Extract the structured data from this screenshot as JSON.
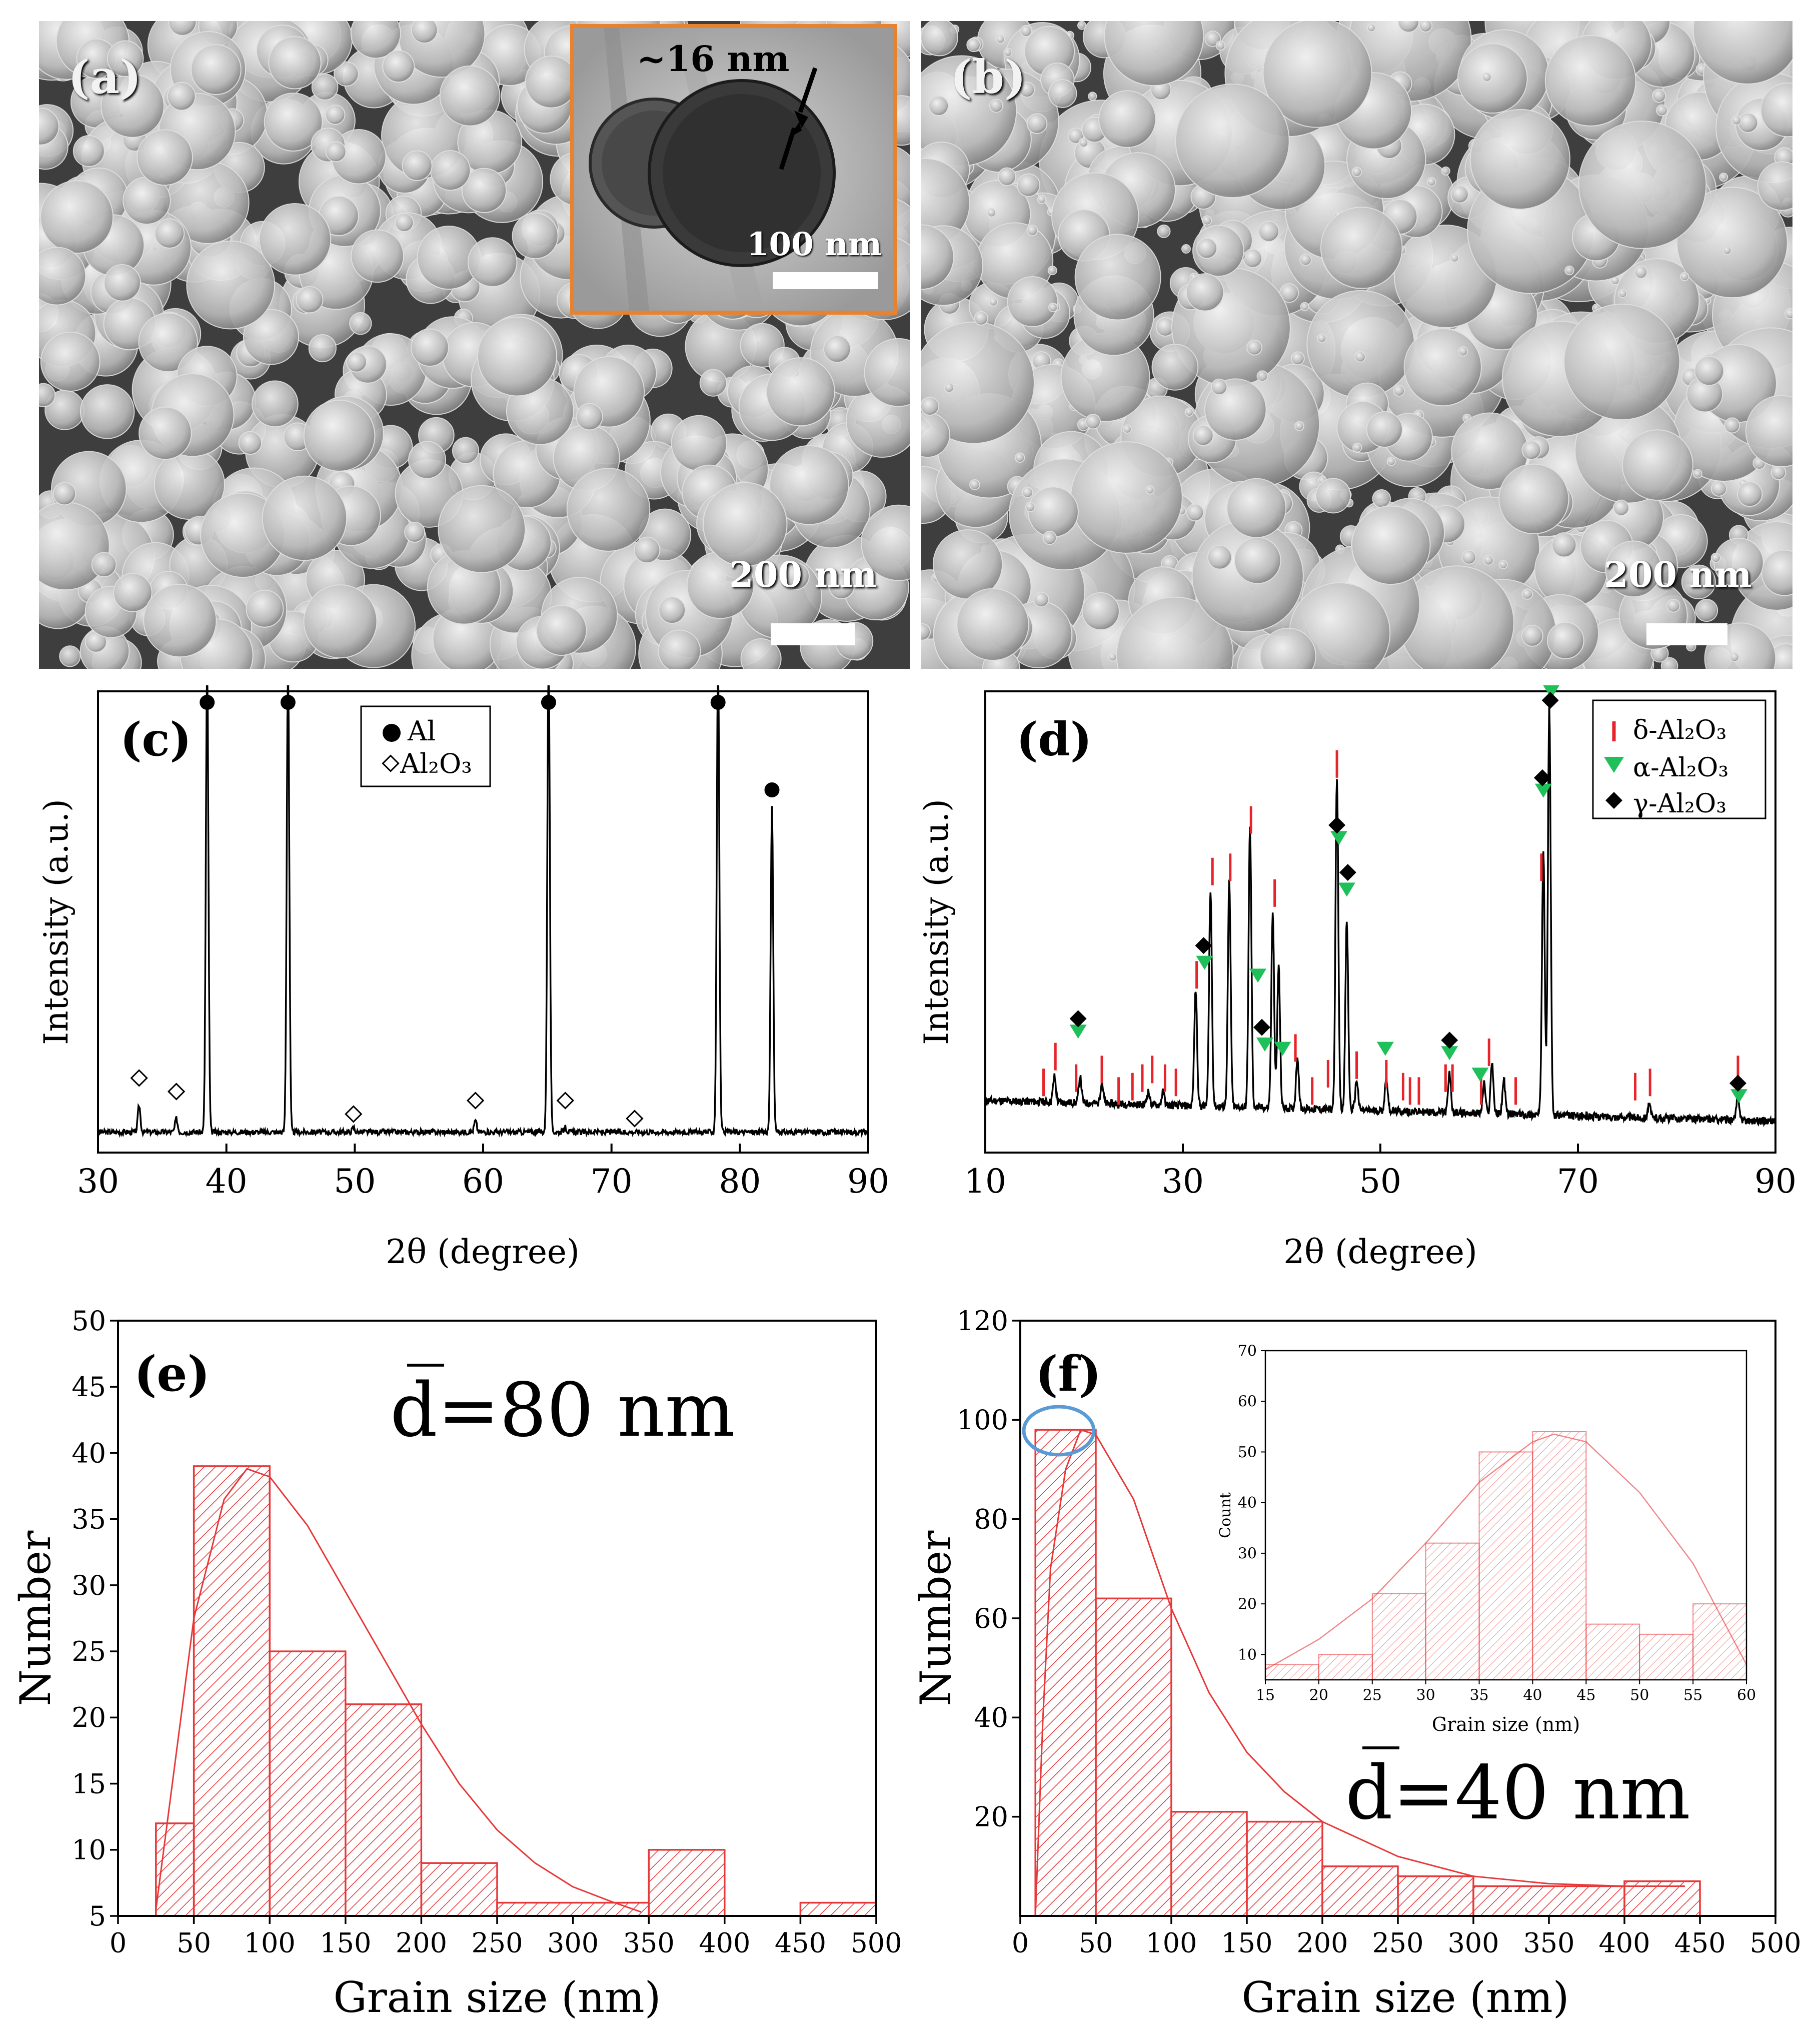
{
  "panels": {
    "a": {
      "label": "(a)",
      "scale_bar": "200 nm",
      "inset": {
        "thickness_label": "~16 nm",
        "scale_bar": "100 nm"
      }
    },
    "b": {
      "label": "(b)",
      "scale_bar": "200 nm"
    },
    "c": {
      "label": "(c)"
    },
    "d": {
      "label": "(d)"
    },
    "e": {
      "label": "(e)",
      "annotation": "d̅=80 nm"
    },
    "f": {
      "label": "(f)",
      "annotation": "d̅=40 nm"
    }
  },
  "colors": {
    "hist": "#e8393a",
    "delta": "#e8242a",
    "alpha": "#1fbf5a",
    "gamma": "#000000",
    "inset_border": "#e8822e",
    "circle": "#5b9bd5"
  },
  "chart_data": [
    {
      "id": "c",
      "type": "line",
      "xlabel": "2θ (degree)",
      "ylabel": "Intensity (a.u.)",
      "xlim": [
        30,
        90
      ],
      "xticks": [
        30,
        40,
        50,
        60,
        70,
        80,
        90
      ],
      "legend": [
        {
          "marker": "filled-circle",
          "name": "Al"
        },
        {
          "marker": "open-diamond",
          "name": "Al₂O₃"
        }
      ],
      "legend_position": "top-center",
      "peaks": [
        {
          "x": 33.2,
          "h": 0.06
        },
        {
          "x": 36.1,
          "h": 0.03
        },
        {
          "x": 38.5,
          "h": 1.05
        },
        {
          "x": 44.8,
          "h": 1.05
        },
        {
          "x": 49.9,
          "h": 0.01
        },
        {
          "x": 59.4,
          "h": 0.025
        },
        {
          "x": 65.1,
          "h": 1.05
        },
        {
          "x": 66.4,
          "h": 0.01
        },
        {
          "x": 78.3,
          "h": 1.05
        },
        {
          "x": 82.5,
          "h": 0.72
        }
      ],
      "al_markers": [
        38.5,
        44.8,
        65.1,
        78.3,
        82.5
      ],
      "al2o3_markers": [
        {
          "x": 33.2,
          "y": 0.12
        },
        {
          "x": 36.1,
          "y": 0.09
        },
        {
          "x": 49.9,
          "y": 0.04
        },
        {
          "x": 59.4,
          "y": 0.07
        },
        {
          "x": 66.4,
          "y": 0.07
        },
        {
          "x": 71.8,
          "y": 0.03
        }
      ]
    },
    {
      "id": "d",
      "type": "line",
      "xlabel": "2θ (degree)",
      "ylabel": "Intensity (a.u.)",
      "xlim": [
        10,
        90
      ],
      "xticks": [
        10,
        30,
        50,
        70,
        90
      ],
      "legend": [
        {
          "marker": "red-tick",
          "name": "δ-Al₂O₃"
        },
        {
          "marker": "green-triangle",
          "name": "α-Al₂O₃"
        },
        {
          "marker": "black-diamond",
          "name": "γ-Al₂O₃"
        }
      ],
      "legend_position": "top-right",
      "peaks": [
        {
          "x": 17.0,
          "h": 0.06
        },
        {
          "x": 19.6,
          "h": 0.06
        },
        {
          "x": 21.8,
          "h": 0.05
        },
        {
          "x": 26.5,
          "h": 0.03
        },
        {
          "x": 28.0,
          "h": 0.03
        },
        {
          "x": 31.3,
          "h": 0.27
        },
        {
          "x": 32.8,
          "h": 0.5
        },
        {
          "x": 34.7,
          "h": 0.52
        },
        {
          "x": 36.8,
          "h": 0.65
        },
        {
          "x": 39.1,
          "h": 0.45
        },
        {
          "x": 39.7,
          "h": 0.33
        },
        {
          "x": 41.6,
          "h": 0.12
        },
        {
          "x": 45.6,
          "h": 0.77
        },
        {
          "x": 46.6,
          "h": 0.44
        },
        {
          "x": 47.6,
          "h": 0.07
        },
        {
          "x": 50.6,
          "h": 0.08
        },
        {
          "x": 57.0,
          "h": 0.09
        },
        {
          "x": 60.5,
          "h": 0.07
        },
        {
          "x": 61.3,
          "h": 0.12
        },
        {
          "x": 62.5,
          "h": 0.08
        },
        {
          "x": 66.5,
          "h": 0.62
        },
        {
          "x": 67.1,
          "h": 0.95
        },
        {
          "x": 77.2,
          "h": 0.03
        },
        {
          "x": 86.2,
          "h": 0.06
        }
      ],
      "delta_markers": [
        {
          "x": 15.9,
          "y": 0.08
        },
        {
          "x": 17.1,
          "y": 0.14
        },
        {
          "x": 19.2,
          "y": 0.09
        },
        {
          "x": 21.8,
          "y": 0.11
        },
        {
          "x": 23.5,
          "y": 0.06
        },
        {
          "x": 24.9,
          "y": 0.07
        },
        {
          "x": 25.9,
          "y": 0.09
        },
        {
          "x": 26.9,
          "y": 0.11
        },
        {
          "x": 28.2,
          "y": 0.09
        },
        {
          "x": 29.3,
          "y": 0.08
        },
        {
          "x": 31.4,
          "y": 0.33
        },
        {
          "x": 33.0,
          "y": 0.57
        },
        {
          "x": 34.8,
          "y": 0.58
        },
        {
          "x": 36.9,
          "y": 0.69
        },
        {
          "x": 39.3,
          "y": 0.52
        },
        {
          "x": 41.4,
          "y": 0.16
        },
        {
          "x": 43.1,
          "y": 0.06
        },
        {
          "x": 44.7,
          "y": 0.1
        },
        {
          "x": 45.6,
          "y": 0.82
        },
        {
          "x": 47.6,
          "y": 0.12
        },
        {
          "x": 50.6,
          "y": 0.1
        },
        {
          "x": 52.3,
          "y": 0.07
        },
        {
          "x": 53.0,
          "y": 0.06
        },
        {
          "x": 53.9,
          "y": 0.06
        },
        {
          "x": 56.6,
          "y": 0.09
        },
        {
          "x": 57.3,
          "y": 0.09
        },
        {
          "x": 60.2,
          "y": 0.06
        },
        {
          "x": 61.0,
          "y": 0.15
        },
        {
          "x": 63.7,
          "y": 0.06
        },
        {
          "x": 66.3,
          "y": 0.58
        },
        {
          "x": 75.8,
          "y": 0.07
        },
        {
          "x": 77.3,
          "y": 0.08
        },
        {
          "x": 86.2,
          "y": 0.11
        }
      ],
      "alpha_markers": [
        {
          "x": 19.4,
          "y": 0.23
        },
        {
          "x": 32.2,
          "y": 0.39
        },
        {
          "x": 37.6,
          "y": 0.36
        },
        {
          "x": 38.3,
          "y": 0.2
        },
        {
          "x": 40.1,
          "y": 0.19
        },
        {
          "x": 45.8,
          "y": 0.68
        },
        {
          "x": 46.6,
          "y": 0.56
        },
        {
          "x": 50.5,
          "y": 0.19
        },
        {
          "x": 57.0,
          "y": 0.18
        },
        {
          "x": 60.1,
          "y": 0.13
        },
        {
          "x": 66.5,
          "y": 0.79
        },
        {
          "x": 67.3,
          "y": 1.02
        },
        {
          "x": 86.3,
          "y": 0.08
        }
      ],
      "gamma_markers": [
        {
          "x": 19.4,
          "y": 0.26
        },
        {
          "x": 32.1,
          "y": 0.43
        },
        {
          "x": 38.0,
          "y": 0.24
        },
        {
          "x": 45.6,
          "y": 0.71
        },
        {
          "x": 46.7,
          "y": 0.6
        },
        {
          "x": 57.0,
          "y": 0.21
        },
        {
          "x": 66.4,
          "y": 0.82
        },
        {
          "x": 67.2,
          "y": 1.0
        },
        {
          "x": 86.2,
          "y": 0.11
        }
      ]
    },
    {
      "id": "e",
      "type": "bar",
      "xlabel": "Grain size (nm)",
      "ylabel": "Number",
      "xlim": [
        0,
        500
      ],
      "ylim": [
        5,
        50
      ],
      "xticks": [
        0,
        50,
        100,
        150,
        200,
        250,
        300,
        350,
        400,
        450,
        500
      ],
      "yticks": [
        5,
        10,
        15,
        20,
        25,
        30,
        35,
        40,
        45,
        50
      ],
      "bins": [
        {
          "x0": 25,
          "x1": 50,
          "value": 12
        },
        {
          "x0": 50,
          "x1": 100,
          "value": 39
        },
        {
          "x0": 100,
          "x1": 150,
          "value": 25
        },
        {
          "x0": 150,
          "x1": 200,
          "value": 21
        },
        {
          "x0": 200,
          "x1": 250,
          "value": 9
        },
        {
          "x0": 250,
          "x1": 350,
          "value": 6
        },
        {
          "x0": 350,
          "x1": 400,
          "value": 10
        },
        {
          "x0": 450,
          "x1": 500,
          "value": 6
        }
      ],
      "fit_curve": [
        [
          25,
          5.5
        ],
        [
          50,
          27.5
        ],
        [
          70,
          36.5
        ],
        [
          85,
          38.8
        ],
        [
          100,
          38.2
        ],
        [
          125,
          34.5
        ],
        [
          150,
          29.5
        ],
        [
          175,
          24.5
        ],
        [
          200,
          19.5
        ],
        [
          225,
          15.0
        ],
        [
          250,
          11.5
        ],
        [
          275,
          9.0
        ],
        [
          300,
          7.2
        ],
        [
          325,
          6.1
        ],
        [
          345,
          5.3
        ]
      ]
    },
    {
      "id": "f",
      "type": "bar",
      "xlabel": "Grain size (nm)",
      "ylabel": "Number",
      "xlim": [
        0,
        500
      ],
      "ylim": [
        0,
        120
      ],
      "xticks": [
        0,
        50,
        100,
        150,
        200,
        250,
        300,
        350,
        400,
        450,
        500
      ],
      "yticks": [
        20,
        40,
        60,
        80,
        100,
        120
      ],
      "bins": [
        {
          "x0": 10,
          "x1": 50,
          "value": 98
        },
        {
          "x0": 50,
          "x1": 100,
          "value": 64
        },
        {
          "x0": 100,
          "x1": 150,
          "value": 21
        },
        {
          "x0": 150,
          "x1": 200,
          "value": 19
        },
        {
          "x0": 200,
          "x1": 250,
          "value": 10
        },
        {
          "x0": 250,
          "x1": 300,
          "value": 8
        },
        {
          "x0": 300,
          "x1": 400,
          "value": 6
        },
        {
          "x0": 400,
          "x1": 450,
          "value": 7
        }
      ],
      "fit_curve": [
        [
          10,
          0
        ],
        [
          15,
          40
        ],
        [
          20,
          70
        ],
        [
          30,
          90
        ],
        [
          40,
          98
        ],
        [
          50,
          97
        ],
        [
          75,
          84
        ],
        [
          100,
          62
        ],
        [
          125,
          45
        ],
        [
          150,
          33
        ],
        [
          175,
          25
        ],
        [
          200,
          19
        ],
        [
          250,
          12
        ],
        [
          300,
          8
        ],
        [
          350,
          6.5
        ],
        [
          400,
          6
        ],
        [
          440,
          6
        ]
      ]
    },
    {
      "id": "f-inset",
      "type": "bar",
      "xlabel": "Grain size (nm)",
      "ylabel": "Count",
      "xlim": [
        15,
        60
      ],
      "ylim": [
        5,
        70
      ],
      "xticks": [
        15,
        20,
        25,
        30,
        35,
        40,
        45,
        50,
        55,
        60
      ],
      "yticks": [
        10,
        20,
        30,
        40,
        50,
        60,
        70
      ],
      "bins": [
        {
          "x0": 15,
          "x1": 20,
          "value": 8
        },
        {
          "x0": 20,
          "x1": 25,
          "value": 10
        },
        {
          "x0": 25,
          "x1": 30,
          "value": 22
        },
        {
          "x0": 30,
          "x1": 35,
          "value": 32
        },
        {
          "x0": 35,
          "x1": 40,
          "value": 50
        },
        {
          "x0": 40,
          "x1": 45,
          "value": 54
        },
        {
          "x0": 45,
          "x1": 50,
          "value": 16
        },
        {
          "x0": 50,
          "x1": 55,
          "value": 14
        },
        {
          "x0": 55,
          "x1": 60,
          "value": 20
        }
      ],
      "fit_curve": [
        [
          15,
          7
        ],
        [
          20,
          13
        ],
        [
          25,
          21
        ],
        [
          30,
          32
        ],
        [
          35,
          44
        ],
        [
          40,
          52
        ],
        [
          42,
          53.5
        ],
        [
          45,
          52
        ],
        [
          50,
          42
        ],
        [
          55,
          28
        ],
        [
          60,
          8
        ]
      ]
    }
  ]
}
